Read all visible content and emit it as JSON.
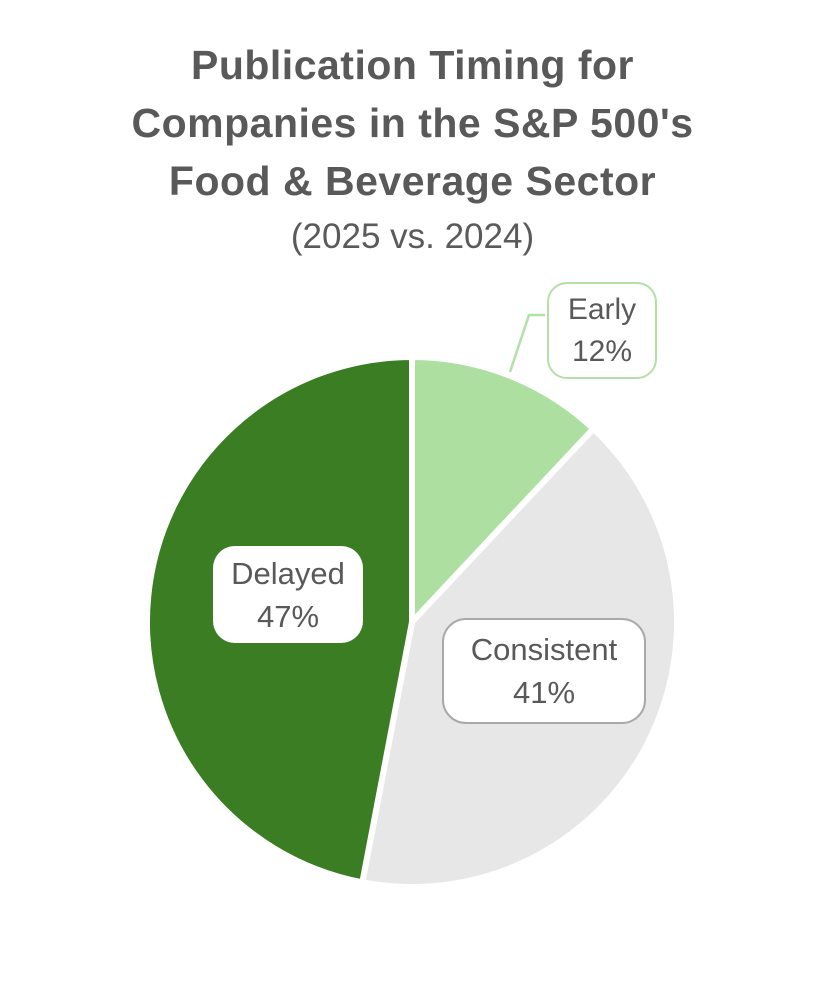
{
  "header": {
    "title_lines": [
      "Publication Timing for",
      "Companies in the S&P 500's",
      "Food & Beverage Sector"
    ],
    "subtitle": "(2025 vs. 2024)"
  },
  "chart_data": {
    "type": "pie",
    "title": "Publication Timing for Companies in the S&P 500's Food & Beverage Sector",
    "subtitle": "(2025 vs. 2024)",
    "unit": "percent",
    "start_angle_deg": 0,
    "direction": "clockwise",
    "legend": "none",
    "slices": [
      {
        "label": "Early",
        "value": 12,
        "pct_label": "12%",
        "color": "#ade0a0",
        "callout": "outside box with leader line"
      },
      {
        "label": "Consistent",
        "value": 41,
        "pct_label": "41%",
        "color": "#e7e7e7",
        "callout": "box on slice"
      },
      {
        "label": "Delayed",
        "value": 47,
        "pct_label": "47%",
        "color": "#3a7d22",
        "callout": "box on slice"
      }
    ]
  },
  "styles": {
    "background": "#ffffff",
    "title_color": "#595959",
    "label_text_color": "#595959",
    "slice_gap_color": "#ffffff",
    "early_callout_border": "#b5dfa9",
    "consistent_callout_border": "#a9a9a9"
  }
}
